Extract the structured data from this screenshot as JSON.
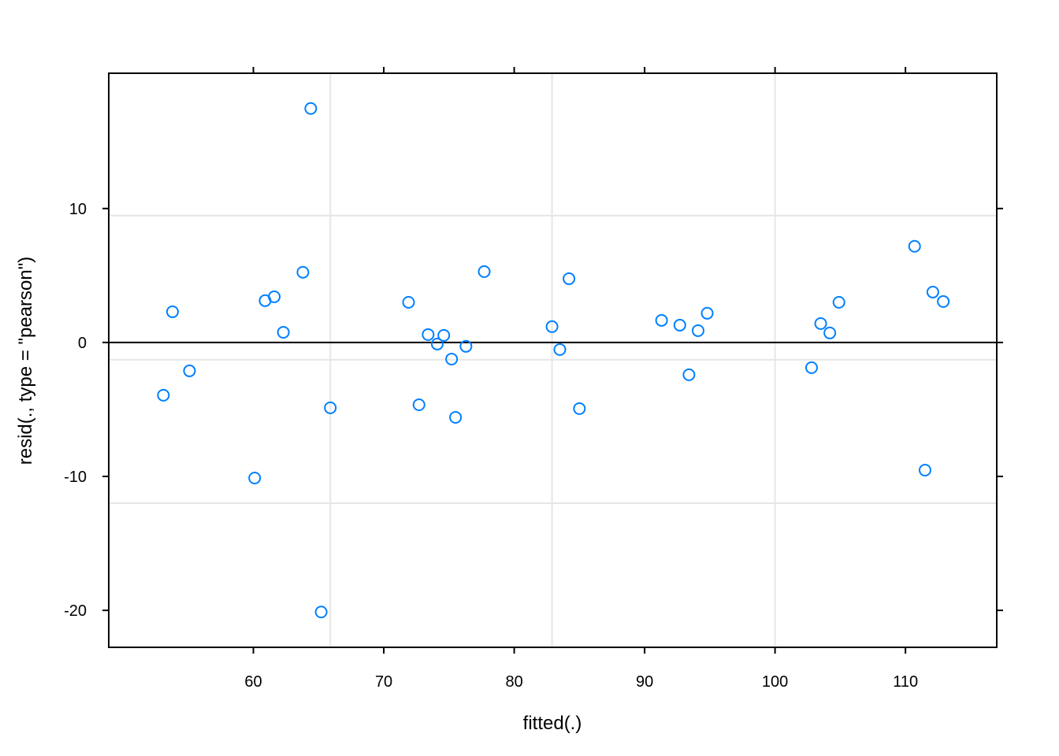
{
  "chart_data": {
    "type": "scatter",
    "x_label": "fitted(.)",
    "y_label": "resid(., type = \"pearson\")",
    "xlim": [
      48.91,
      117.0
    ],
    "ylim": [
      -22.76,
      20.1
    ],
    "xticks": [
      60,
      70,
      80,
      90,
      100,
      110
    ],
    "yticks": [
      -20,
      -10,
      0,
      10
    ],
    "xgrid": [
      65.9,
      82.9,
      100
    ],
    "ygrid": [
      9.47,
      -1.29,
      -12
    ],
    "hline": 0,
    "color": "#0080ff",
    "x": [
      53.1,
      53.8,
      55.1,
      60.1,
      60.9,
      61.6,
      62.3,
      63.8,
      64.4,
      65.2,
      65.9,
      71.9,
      72.7,
      73.4,
      74.1,
      74.6,
      75.2,
      75.5,
      76.3,
      77.7,
      82.9,
      83.5,
      84.2,
      85.0,
      91.3,
      92.7,
      93.4,
      94.1,
      94.8,
      102.8,
      103.5,
      104.2,
      104.9,
      110.7,
      111.5,
      112.1,
      112.9
    ],
    "values": [
      -3.94,
      2.29,
      -2.12,
      -10.12,
      3.12,
      3.41,
      0.76,
      5.24,
      17.47,
      -20.12,
      -4.88,
      3.0,
      -4.65,
      0.59,
      -0.12,
      0.53,
      -1.24,
      -5.59,
      -0.29,
      5.29,
      1.18,
      -0.53,
      4.76,
      -4.94,
      1.65,
      1.29,
      -2.41,
      0.88,
      2.18,
      -1.88,
      1.41,
      0.71,
      3.0,
      7.18,
      -9.53,
      3.76,
      3.06
    ]
  }
}
